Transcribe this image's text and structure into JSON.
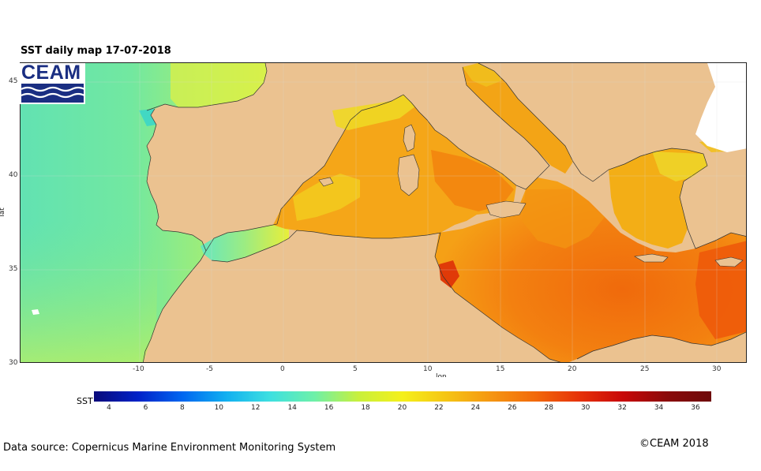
{
  "title": "SST daily map 17-07-2018",
  "logo_text": "CEAM",
  "axes": {
    "x_label": "lon",
    "y_label": "lat",
    "x_ticks": [
      "-10",
      "-5",
      "0",
      "5",
      "10",
      "15",
      "20",
      "25",
      "30"
    ],
    "y_ticks": [
      "45",
      "40",
      "35",
      "30"
    ]
  },
  "colorbar": {
    "label": "SST",
    "ticks": [
      "4",
      "6",
      "8",
      "10",
      "12",
      "14",
      "16",
      "18",
      "20",
      "22",
      "24",
      "26",
      "28",
      "30",
      "32",
      "34",
      "36"
    ],
    "colors": [
      "#0a0a7a",
      "#0022c8",
      "#0066f0",
      "#12b0f0",
      "#3ee0e0",
      "#6ef0a8",
      "#c8f03c",
      "#f5f01a",
      "#f5c414",
      "#f59612",
      "#f26a0a",
      "#e63208",
      "#c80808",
      "#8a0a0a",
      "#6e0a0a"
    ]
  },
  "footer": {
    "source": "Data source: Copernicus Marine Environment Monitoring System",
    "copyright": "©CEAM 2018"
  },
  "colors": {
    "land": "#ebc290",
    "atlantic": "#6ee6a0",
    "mediterranean_warm": "#f59a14",
    "mediterranean_hot": "#f06a0c"
  }
}
